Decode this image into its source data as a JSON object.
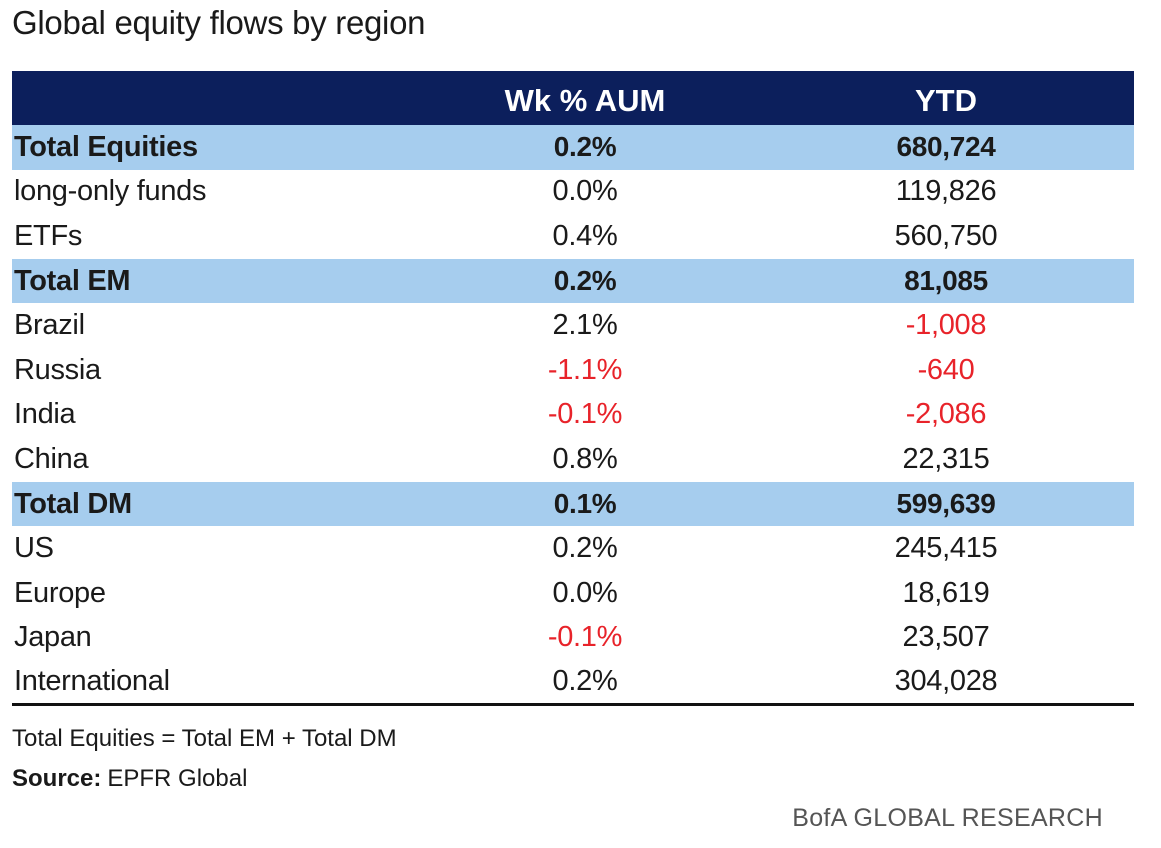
{
  "title": "Global equity flows by region",
  "chart_data": {
    "type": "table",
    "columns": [
      "",
      "Wk % AUM",
      "YTD"
    ],
    "rows": [
      {
        "label": "Total Equities",
        "wk": "0.2%",
        "ytd": "680,724",
        "total": true,
        "wk_neg": false,
        "ytd_neg": false
      },
      {
        "label": "long-only funds",
        "wk": "0.0%",
        "ytd": "119,826",
        "total": false,
        "wk_neg": false,
        "ytd_neg": false
      },
      {
        "label": "ETFs",
        "wk": "0.4%",
        "ytd": "560,750",
        "total": false,
        "wk_neg": false,
        "ytd_neg": false
      },
      {
        "label": "Total EM",
        "wk": "0.2%",
        "ytd": "81,085",
        "total": true,
        "wk_neg": false,
        "ytd_neg": false
      },
      {
        "label": "Brazil",
        "wk": "2.1%",
        "ytd": "-1,008",
        "total": false,
        "wk_neg": false,
        "ytd_neg": true
      },
      {
        "label": "Russia",
        "wk": "-1.1%",
        "ytd": "-640",
        "total": false,
        "wk_neg": true,
        "ytd_neg": true
      },
      {
        "label": "India",
        "wk": "-0.1%",
        "ytd": "-2,086",
        "total": false,
        "wk_neg": true,
        "ytd_neg": true
      },
      {
        "label": "China",
        "wk": "0.8%",
        "ytd": "22,315",
        "total": false,
        "wk_neg": false,
        "ytd_neg": false
      },
      {
        "label": "Total DM",
        "wk": "0.1%",
        "ytd": "599,639",
        "total": true,
        "wk_neg": false,
        "ytd_neg": false
      },
      {
        "label": "US",
        "wk": "0.2%",
        "ytd": "245,415",
        "total": false,
        "wk_neg": false,
        "ytd_neg": false
      },
      {
        "label": "Europe",
        "wk": "0.0%",
        "ytd": "18,619",
        "total": false,
        "wk_neg": false,
        "ytd_neg": false
      },
      {
        "label": "Japan",
        "wk": "-0.1%",
        "ytd": "23,507",
        "total": false,
        "wk_neg": true,
        "ytd_neg": false
      },
      {
        "label": "International",
        "wk": "0.2%",
        "ytd": "304,028",
        "total": false,
        "wk_neg": false,
        "ytd_neg": false
      }
    ],
    "colors": {
      "header_bg": "#0c1f5c",
      "total_row_bg": "#a6cdee",
      "negative": "#e8232a"
    }
  },
  "footnote": "Total Equities = Total EM + Total DM",
  "source": {
    "label": "Source:",
    "value": "EPFR Global"
  },
  "brand": "BofA GLOBAL RESEARCH"
}
